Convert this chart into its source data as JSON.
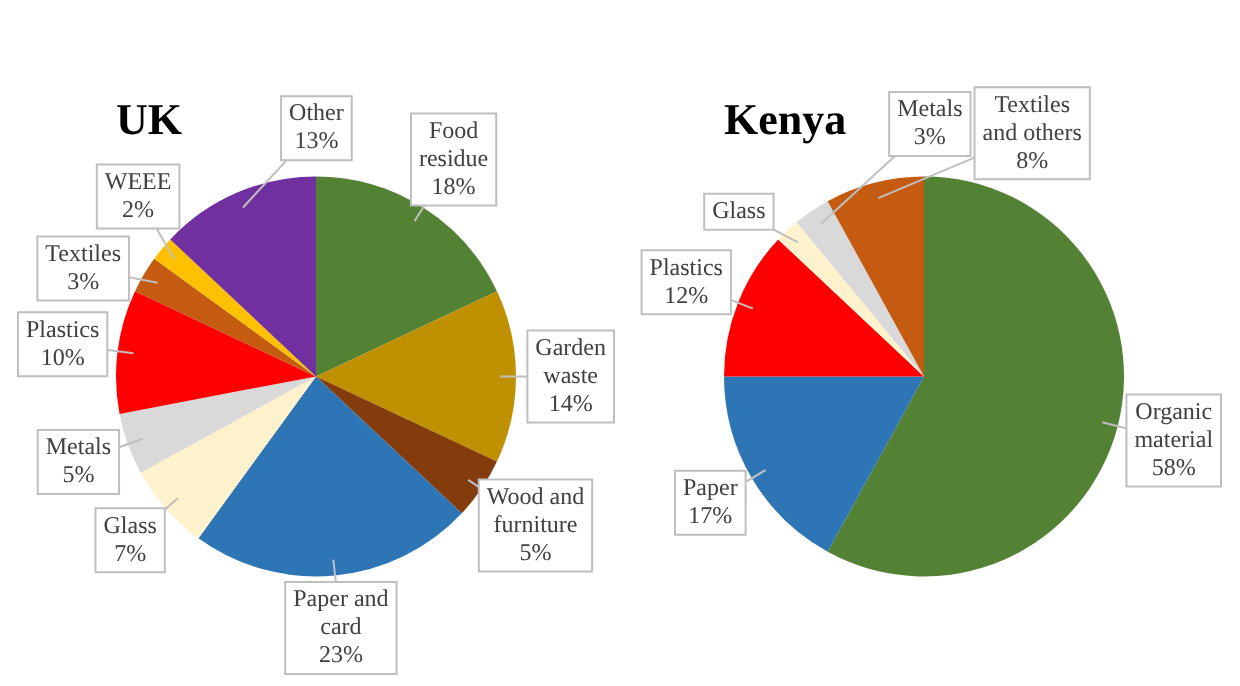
{
  "chart_data": [
    {
      "type": "pie",
      "title": "UK",
      "categories": [
        "Food residue",
        "Garden waste",
        "Wood and furniture",
        "Paper and card",
        "Glass",
        "Metals",
        "Plastics",
        "Textiles",
        "WEEE",
        "Other"
      ],
      "values": [
        18,
        14,
        5,
        23,
        7,
        5,
        10,
        3,
        2,
        13
      ],
      "value_labels": [
        "18%",
        "14%",
        "5%",
        "23%",
        "7%",
        "5%",
        "10%",
        "3%",
        "2%",
        "13%"
      ],
      "colors": [
        "#548235",
        "#bf9000",
        "#843c0c",
        "#2e75b6",
        "#fff2cc",
        "#d9d9d9",
        "#ff0000",
        "#c55a11",
        "#ffc000",
        "#7030a0"
      ],
      "legend": false
    },
    {
      "type": "pie",
      "title": "Kenya",
      "categories": [
        "Organic material",
        "Paper",
        "Plastics",
        "Glass",
        "Metals",
        "Textiles and others"
      ],
      "values": [
        58,
        17,
        12,
        2,
        3,
        8
      ],
      "value_labels": [
        "58%",
        "17%",
        "12%",
        null,
        "3%",
        "8%"
      ],
      "colors": [
        "#548235",
        "#2e75b6",
        "#ff0000",
        "#fff2cc",
        "#d9d9d9",
        "#c55a11"
      ],
      "legend": false
    }
  ]
}
